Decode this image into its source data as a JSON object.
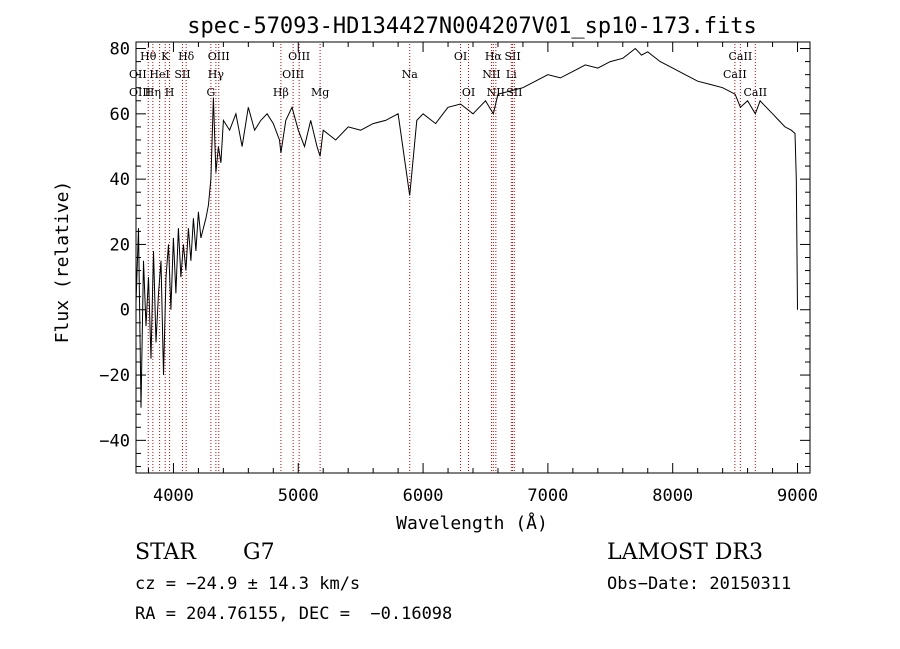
{
  "chart_data": {
    "type": "line",
    "title": "spec-57093-HD134427N004207V01_sp10-173.fits",
    "xlabel": "Wavelength (Å)",
    "ylabel": "Flux (relative)",
    "xlim": [
      3700,
      9100
    ],
    "ylim": [
      -50,
      82
    ],
    "x_ticks": [
      4000,
      5000,
      6000,
      7000,
      8000,
      9000
    ],
    "y_ticks": [
      -40,
      -20,
      0,
      20,
      40,
      60,
      80
    ],
    "x_tick_labels": [
      "4000",
      "5000",
      "6000",
      "7000",
      "8000",
      "9000"
    ],
    "y_tick_labels": [
      "−40",
      "−20",
      "0",
      "20",
      "40",
      "60",
      "80"
    ],
    "grid": false,
    "series_color": "#000000",
    "line_marker_color": "#cc0000",
    "series": [
      {
        "x": [
          3700,
          3720,
          3740,
          3760,
          3780,
          3800,
          3820,
          3840,
          3860,
          3880,
          3900,
          3920,
          3940,
          3960,
          3980,
          4000,
          4020,
          4040,
          4060,
          4080,
          4100,
          4120,
          4140,
          4160,
          4180,
          4200,
          4220,
          4240,
          4260,
          4280,
          4300,
          4320,
          4340,
          4360,
          4380,
          4400,
          4450,
          4500,
          4550,
          4600,
          4650,
          4700,
          4750,
          4800,
          4850,
          4861,
          4900,
          4950,
          5000,
          5050,
          5100,
          5150,
          5175,
          5200,
          5300,
          5400,
          5500,
          5600,
          5700,
          5800,
          5893,
          5950,
          6000,
          6100,
          6200,
          6300,
          6400,
          6500,
          6563,
          6600,
          6700,
          6800,
          6900,
          7000,
          7100,
          7200,
          7300,
          7400,
          7500,
          7600,
          7700,
          7750,
          7800,
          7900,
          8000,
          8100,
          8200,
          8300,
          8400,
          8500,
          8542,
          8600,
          8662,
          8700,
          8750,
          8800,
          8850,
          8900,
          8950,
          8980,
          8990,
          9000
        ],
        "y": [
          2,
          25,
          -30,
          15,
          -5,
          10,
          -15,
          18,
          -10,
          5,
          15,
          -20,
          10,
          20,
          0,
          22,
          5,
          25,
          10,
          20,
          12,
          25,
          15,
          28,
          18,
          30,
          22,
          25,
          28,
          32,
          40,
          65,
          42,
          50,
          45,
          58,
          55,
          60,
          50,
          62,
          55,
          58,
          60,
          57,
          52,
          48,
          58,
          62,
          55,
          50,
          58,
          50,
          47,
          55,
          52,
          56,
          55,
          57,
          58,
          60,
          35,
          58,
          60,
          57,
          62,
          63,
          60,
          64,
          60,
          66,
          67,
          68,
          70,
          72,
          71,
          73,
          75,
          74,
          76,
          77,
          80,
          78,
          79,
          76,
          74,
          72,
          70,
          69,
          68,
          66,
          62,
          64,
          60,
          64,
          62,
          60,
          58,
          56,
          55,
          54,
          40,
          0
        ]
      }
    ],
    "lines": [
      {
        "x": 3798,
        "label": "Hθ",
        "row": 1
      },
      {
        "x": 3835,
        "label": "Hη",
        "row": 3
      },
      {
        "x": 3889,
        "label": "HeI",
        "row": 2
      },
      {
        "x": 3934,
        "label": "K",
        "row": 1
      },
      {
        "x": 3969,
        "label": "H",
        "row": 3
      },
      {
        "x": 4072,
        "label": "SII",
        "row": 2
      },
      {
        "x": 4102,
        "label": "Hδ",
        "row": 1
      },
      {
        "x": 4300,
        "label": "G",
        "row": 3
      },
      {
        "x": 4340,
        "label": "Hγ",
        "row": 2
      },
      {
        "x": 4363,
        "label": "OIII",
        "row": 1
      },
      {
        "x": 4861,
        "label": "Hβ",
        "row": 3
      },
      {
        "x": 4959,
        "label": "OIII",
        "row": 2
      },
      {
        "x": 5007,
        "label": "OIII",
        "row": 1
      },
      {
        "x": 5175,
        "label": "Mg",
        "row": 3
      },
      {
        "x": 5893,
        "label": "Na",
        "row": 2
      },
      {
        "x": 6300,
        "label": "OI",
        "row": 1
      },
      {
        "x": 6364,
        "label": "OI",
        "row": 3
      },
      {
        "x": 6548,
        "label": "NII",
        "row": 2
      },
      {
        "x": 6563,
        "label": "Hα",
        "row": 1
      },
      {
        "x": 6583,
        "label": "NII",
        "row": 3
      },
      {
        "x": 6707,
        "label": "Li",
        "row": 2
      },
      {
        "x": 6717,
        "label": "SII",
        "row": 1
      },
      {
        "x": 6731,
        "label": "SII",
        "row": 3
      },
      {
        "x": 8498,
        "label": "CaII",
        "row": 2
      },
      {
        "x": 8542,
        "label": "CaII",
        "row": 1
      },
      {
        "x": 8662,
        "label": "CaII",
        "row": 3
      }
    ],
    "left_edge_labels": [
      {
        "label": "OII",
        "row": 2
      },
      {
        "label": "OIII",
        "row": 3
      }
    ]
  },
  "info": {
    "object_type": "STAR",
    "subclass": "G7",
    "survey": "LAMOST DR3",
    "redshift": "cz = −24.9 ± 14.3 km/s",
    "obs_date": "Obs−Date: 20150311",
    "coords": "RA = 204.76155, DEC =  −0.16098"
  }
}
